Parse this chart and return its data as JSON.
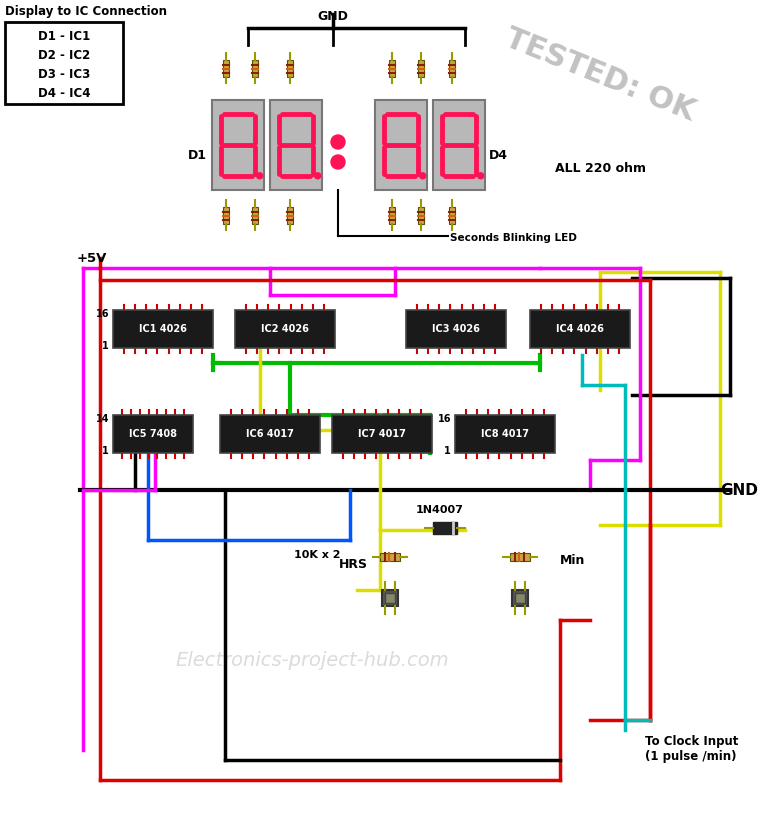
{
  "bg_color": "#ffffff",
  "ic_color": "#1a1a1a",
  "ic_text_color": "#ffffff",
  "resistor_body": "#c8a44a",
  "resistor_band_dark": "#8B0000",
  "resistor_band_orange": "#cc6600",
  "wire_red": "#dd0000",
  "wire_black": "#000000",
  "wire_magenta": "#ff00ff",
  "wire_yellow": "#dddd00",
  "wire_green": "#00bb00",
  "wire_blue": "#0055ff",
  "wire_cyan": "#00bbbb",
  "display_seg_color": "#ff1155",
  "display_bg": "#b8b8b8",
  "gnd_label": "GND",
  "plus5v_label": "+5V",
  "tested_ok_color": "#bbbbbb",
  "watermark": "Electronics-project-hub.com",
  "ic_labels": [
    "IC1 4026",
    "IC2 4026",
    "IC3 4026",
    "IC4 4026",
    "IC5 7408",
    "IC6 4017",
    "IC7 4017",
    "IC8 4017"
  ],
  "connection_table": [
    "D1 - IC1",
    "D2 - IC2",
    "D3 - IC3",
    "D4 - IC4"
  ],
  "all_220_ohm": "ALL 220 ohm",
  "seconds_blinking": "Seconds Blinking LED",
  "diode_label": "1N4007",
  "resistor_label": "10K x 2",
  "hrs_label": "HRS",
  "min_label": "Min",
  "clock_input": "To Clock Input\n(1 pulse /min)"
}
